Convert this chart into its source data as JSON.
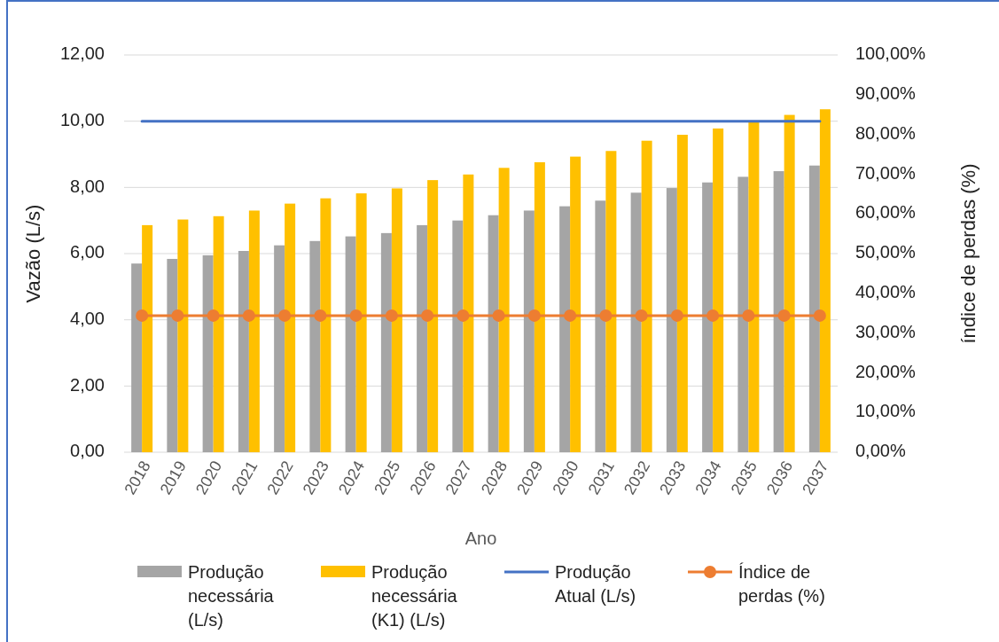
{
  "chart_data": {
    "type": "bar",
    "xlabel": "Ano",
    "ylabel": "Vazão (L/s)",
    "y2label": "índice de perdas (%)",
    "categories": [
      "2018",
      "2019",
      "2020",
      "2021",
      "2022",
      "2023",
      "2024",
      "2025",
      "2026",
      "2027",
      "2028",
      "2029",
      "2030",
      "2031",
      "2032",
      "2033",
      "2034",
      "2035",
      "2036",
      "2037"
    ],
    "series": [
      {
        "name": "Produção necessária (L/s)",
        "color": "#a5a5a5",
        "values": [
          5.7,
          5.84,
          5.95,
          6.08,
          6.25,
          6.38,
          6.52,
          6.62,
          6.86,
          7.0,
          7.16,
          7.3,
          7.43,
          7.6,
          7.84,
          7.98,
          8.15,
          8.32,
          8.49,
          8.66
        ]
      },
      {
        "name": "Produção necessária (K1) (L/s)",
        "color": "#ffc000",
        "values": [
          6.86,
          7.03,
          7.13,
          7.3,
          7.51,
          7.67,
          7.82,
          7.97,
          8.22,
          8.39,
          8.59,
          8.76,
          8.93,
          9.1,
          9.41,
          9.59,
          9.78,
          9.97,
          10.19,
          10.36
        ]
      },
      {
        "name": "Produção Atual (L/s)",
        "color": "#4472c4",
        "type": "line",
        "marker": "none",
        "values": [
          10,
          10,
          10,
          10,
          10,
          10,
          10,
          10,
          10,
          10,
          10,
          10,
          10,
          10,
          10,
          10,
          10,
          10,
          10,
          10
        ]
      },
      {
        "name": "Índice de perdas (%)",
        "color": "#ed7d31",
        "type": "line",
        "axis": "y2",
        "marker": "circle",
        "values": [
          34.4,
          34.4,
          34.4,
          34.4,
          34.4,
          34.4,
          34.4,
          34.4,
          34.4,
          34.4,
          34.4,
          34.4,
          34.4,
          34.4,
          34.4,
          34.4,
          34.4,
          34.4,
          34.4,
          34.4
        ]
      }
    ],
    "ylim": [
      0,
      12
    ],
    "yticks": [
      {
        "value": 0,
        "label": "0,00"
      },
      {
        "value": 2,
        "label": "2,00"
      },
      {
        "value": 4,
        "label": "4,00"
      },
      {
        "value": 6,
        "label": "6,00"
      },
      {
        "value": 8,
        "label": "8,00"
      },
      {
        "value": 10,
        "label": "10,00"
      },
      {
        "value": 12,
        "label": "12,00"
      }
    ],
    "y2lim": [
      0,
      100
    ],
    "y2ticks": [
      {
        "value": 0,
        "label": "0,00%"
      },
      {
        "value": 10,
        "label": "10,00%"
      },
      {
        "value": 20,
        "label": "20,00%"
      },
      {
        "value": 30,
        "label": "30,00%"
      },
      {
        "value": 40,
        "label": "40,00%"
      },
      {
        "value": 50,
        "label": "50,00%"
      },
      {
        "value": 60,
        "label": "60,00%"
      },
      {
        "value": 70,
        "label": "70,00%"
      },
      {
        "value": 80,
        "label": "80,00%"
      },
      {
        "value": 90,
        "label": "90,00%"
      },
      {
        "value": 100,
        "label": "100,00%"
      }
    ],
    "grid": "y",
    "legend": "bottom"
  }
}
